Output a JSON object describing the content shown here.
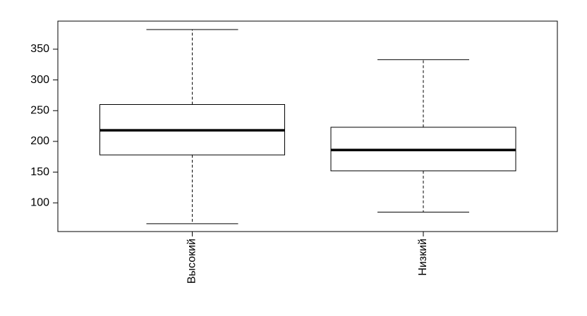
{
  "chart_data": {
    "type": "box",
    "categories": [
      "Высокий",
      "Низкий"
    ],
    "min": [
      66,
      85
    ],
    "q1": [
      178,
      152
    ],
    "median": [
      218,
      186
    ],
    "q3": [
      260,
      223
    ],
    "max": [
      382,
      333
    ],
    "color": "#ffffff",
    "ylim": [
      53.3,
      395.7
    ],
    "yticks": [
      100,
      150,
      200,
      250,
      300,
      350
    ]
  }
}
